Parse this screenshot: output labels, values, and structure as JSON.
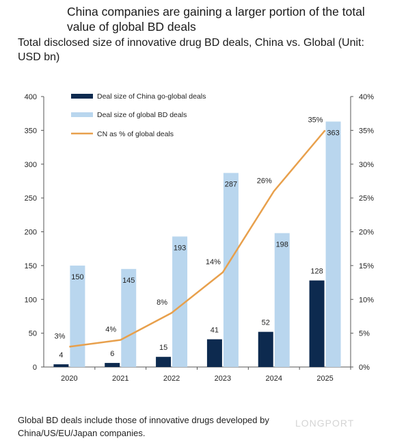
{
  "header": {
    "title": "China companies are gaining a larger portion of the total value of global BD deals",
    "subtitle": "Total disclosed size of innovative drug BD deals, China vs. Global (Unit: USD bn)"
  },
  "footnote": "Global BD deals include those of innovative drugs developed by China/US/EU/Japan companies.",
  "watermark": "LONGPORT",
  "chart_data": {
    "type": "bar",
    "categories": [
      "2020",
      "2021",
      "2022",
      "2023",
      "2024",
      "2025"
    ],
    "series": [
      {
        "name": "Deal size of China go-global deals",
        "kind": "bar",
        "axis": "left",
        "color": "#0d2a4f",
        "values": [
          4,
          6,
          15,
          41,
          52,
          128
        ]
      },
      {
        "name": "Deal size of global BD deals",
        "kind": "bar",
        "axis": "left",
        "color": "#b9d6ee",
        "values": [
          150,
          145,
          193,
          287,
          198,
          363
        ]
      },
      {
        "name": "CN as % of global deals",
        "kind": "line",
        "axis": "right",
        "color": "#e8a04c",
        "values": [
          3,
          4,
          8,
          14,
          26,
          35
        ],
        "labels": [
          "3%",
          "4%",
          "8%",
          "14%",
          "26%",
          "35%"
        ]
      }
    ],
    "y_left": {
      "min": 0,
      "max": 400,
      "ticks": [
        "0",
        "50",
        "100",
        "150",
        "200",
        "250",
        "300",
        "350",
        "400"
      ]
    },
    "y_right": {
      "min": 0,
      "max": 40,
      "ticks": [
        "0%",
        "5%",
        "10%",
        "15%",
        "20%",
        "25%",
        "30%",
        "35%",
        "40%"
      ]
    },
    "legend": "top-left",
    "grid": false
  }
}
